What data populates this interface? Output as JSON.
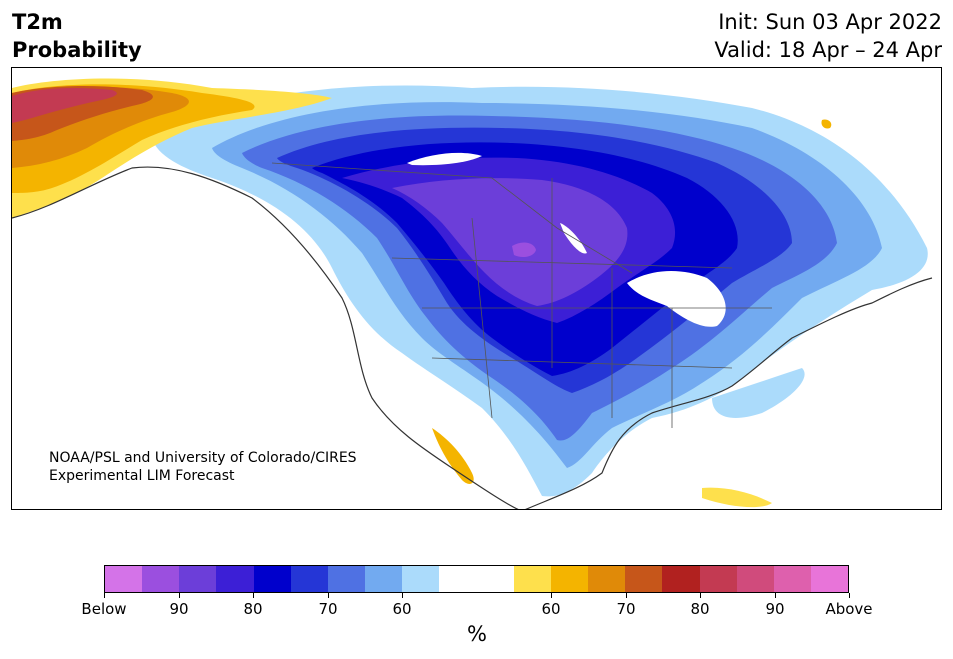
{
  "header": {
    "variable": "T2m",
    "quantity": "Probability",
    "init": "Init: Sun 03 Apr 2022",
    "valid": "Valid: 18 Apr – 24 Apr"
  },
  "credit": {
    "line1": "NOAA/PSL and University of Colorado/CIRES",
    "line2": "Experimental LIM Forecast"
  },
  "colorbar": {
    "units": "%",
    "colors": [
      "#d473e8",
      "#9b4fdf",
      "#6c3ed9",
      "#3c1fd6",
      "#0000cc",
      "#2536d6",
      "#4f71e3",
      "#72aaf0",
      "#abdbfb",
      "#ffffff",
      "#ffffff",
      "#fee04c",
      "#f4b400",
      "#e08a08",
      "#c6561a",
      "#b1211f",
      "#c33a52",
      "#d04b7c",
      "#de60ad",
      "#e874d9"
    ],
    "labels": [
      "Below",
      "90",
      "80",
      "70",
      "60",
      "60",
      "70",
      "80",
      "90",
      "Above"
    ]
  },
  "map_legend": {
    "below_normal_color": "#0000cc",
    "above_normal_color": "#f4b400"
  }
}
